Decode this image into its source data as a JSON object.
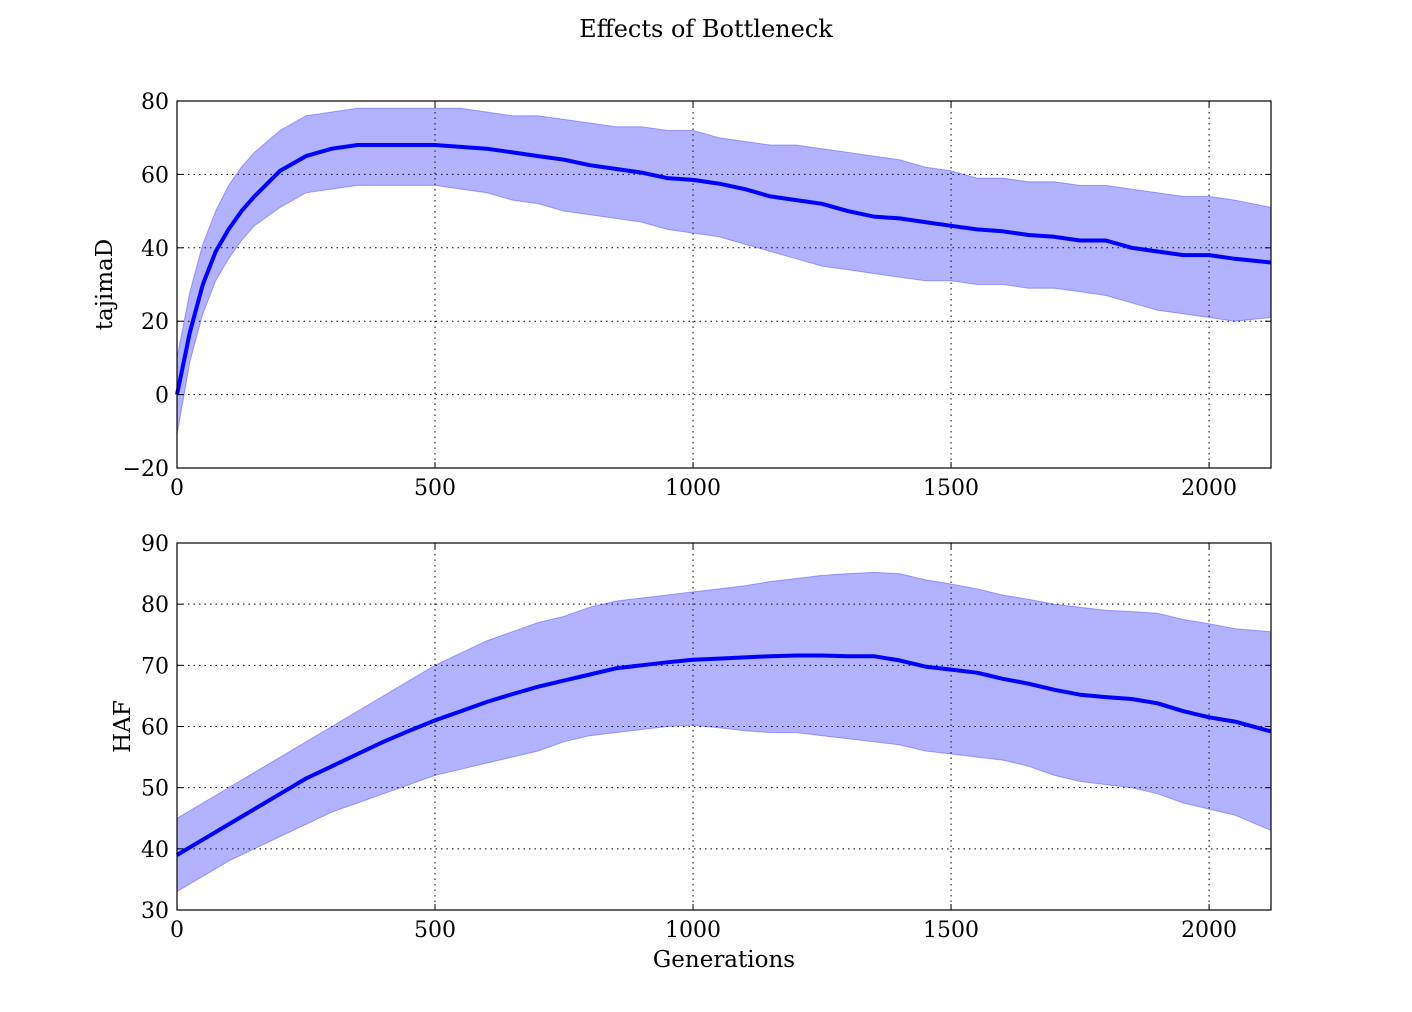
{
  "figure": {
    "title": "Effects of Bottleneck"
  },
  "colors": {
    "line": "#0000ff",
    "band": "#0000ff"
  },
  "chart_data": [
    {
      "type": "line",
      "title": "",
      "xlabel": "",
      "ylabel": "tajimaD",
      "xlim": [
        0,
        2120
      ],
      "ylim": [
        -20,
        80
      ],
      "xticks": [
        0,
        500,
        1000,
        1500,
        2000
      ],
      "yticks": [
        -20,
        0,
        20,
        40,
        60,
        80
      ],
      "yticklabels": [
        "−20",
        "0",
        "20",
        "40",
        "60",
        "80"
      ],
      "grid": true,
      "series": [
        {
          "x": [
            0,
            25,
            50,
            75,
            100,
            125,
            150,
            200,
            250,
            300,
            350,
            400,
            450,
            500,
            550,
            600,
            650,
            700,
            750,
            800,
            850,
            900,
            950,
            1000,
            1050,
            1100,
            1150,
            1200,
            1250,
            1300,
            1350,
            1400,
            1450,
            1500,
            1550,
            1600,
            1650,
            1700,
            1750,
            1800,
            1850,
            1900,
            1950,
            2000,
            2050,
            2120
          ],
          "mean": [
            0,
            17,
            30,
            39,
            45,
            50,
            54,
            61,
            65,
            67,
            68,
            68,
            68,
            68,
            67.5,
            67,
            66,
            65,
            64,
            62.5,
            61.5,
            60.5,
            59,
            58.5,
            57.5,
            56,
            54,
            53,
            52,
            50,
            48.5,
            48,
            47,
            46,
            45,
            44.5,
            43.5,
            43,
            42,
            42,
            40,
            39,
            38,
            38,
            37,
            36
          ],
          "lower": [
            -11,
            9,
            22,
            31,
            37,
            42,
            46,
            51,
            55,
            56,
            57,
            57,
            57,
            57,
            56,
            55,
            53,
            52,
            50,
            49,
            48,
            47,
            45,
            44,
            43,
            41,
            39,
            37,
            35,
            34,
            33,
            32,
            31,
            31,
            30,
            30,
            29,
            29,
            28,
            27,
            25,
            23,
            22,
            21,
            20,
            21
          ],
          "upper": [
            10,
            28,
            41,
            50,
            57,
            62,
            66,
            72,
            76,
            77,
            78,
            78,
            78,
            78,
            78,
            77,
            76,
            76,
            75,
            74,
            73,
            73,
            72,
            72,
            70,
            69,
            68,
            68,
            67,
            66,
            65,
            64,
            62,
            61,
            59,
            59,
            58,
            58,
            57,
            57,
            56,
            55,
            54,
            54,
            53,
            51
          ]
        }
      ]
    },
    {
      "type": "line",
      "title": "",
      "xlabel": "Generations",
      "ylabel": "HAF",
      "xlim": [
        0,
        2120
      ],
      "ylim": [
        30,
        90
      ],
      "xticks": [
        0,
        500,
        1000,
        1500,
        2000
      ],
      "yticks": [
        30,
        40,
        50,
        60,
        70,
        80,
        90
      ],
      "yticklabels": [
        "30",
        "40",
        "50",
        "60",
        "70",
        "80",
        "90"
      ],
      "grid": true,
      "series": [
        {
          "x": [
            0,
            50,
            100,
            150,
            200,
            250,
            300,
            350,
            400,
            450,
            500,
            550,
            600,
            650,
            700,
            750,
            800,
            850,
            900,
            950,
            1000,
            1050,
            1100,
            1150,
            1200,
            1250,
            1300,
            1350,
            1400,
            1450,
            1500,
            1550,
            1600,
            1650,
            1700,
            1750,
            1800,
            1850,
            1900,
            1950,
            2000,
            2050,
            2120
          ],
          "mean": [
            39,
            41.5,
            44,
            46.5,
            49,
            51.5,
            53.5,
            55.5,
            57.5,
            59.3,
            61,
            62.5,
            64,
            65.3,
            66.5,
            67.5,
            68.5,
            69.5,
            70,
            70.5,
            70.9,
            71.1,
            71.3,
            71.5,
            71.6,
            71.6,
            71.5,
            71.5,
            70.8,
            69.8,
            69.3,
            68.8,
            67.8,
            67,
            66,
            65.2,
            64.8,
            64.5,
            63.8,
            62.5,
            61.5,
            60.8,
            59.2
          ],
          "lower": [
            33,
            35.5,
            38,
            40,
            42,
            44,
            46,
            47.5,
            49,
            50.5,
            52,
            53,
            54,
            55,
            56,
            57.5,
            58.5,
            59,
            59.5,
            60,
            60.2,
            59.8,
            59.3,
            59,
            59,
            58.5,
            58,
            57.5,
            57,
            56,
            55.5,
            55,
            54.5,
            53.5,
            52,
            51,
            50.5,
            50,
            49,
            47.5,
            46.5,
            45.5,
            43
          ],
          "upper": [
            45,
            47.5,
            50,
            52.5,
            55,
            57.5,
            60,
            62.5,
            65,
            67.5,
            70,
            72,
            74,
            75.5,
            77,
            78,
            79.5,
            80.5,
            81,
            81.5,
            82,
            82.5,
            83,
            83.7,
            84.2,
            84.7,
            85,
            85.2,
            85,
            84,
            83.3,
            82.5,
            81.5,
            80.8,
            80,
            79.5,
            79,
            78.8,
            78.5,
            77.5,
            76.8,
            76,
            75.5
          ]
        }
      ]
    }
  ]
}
